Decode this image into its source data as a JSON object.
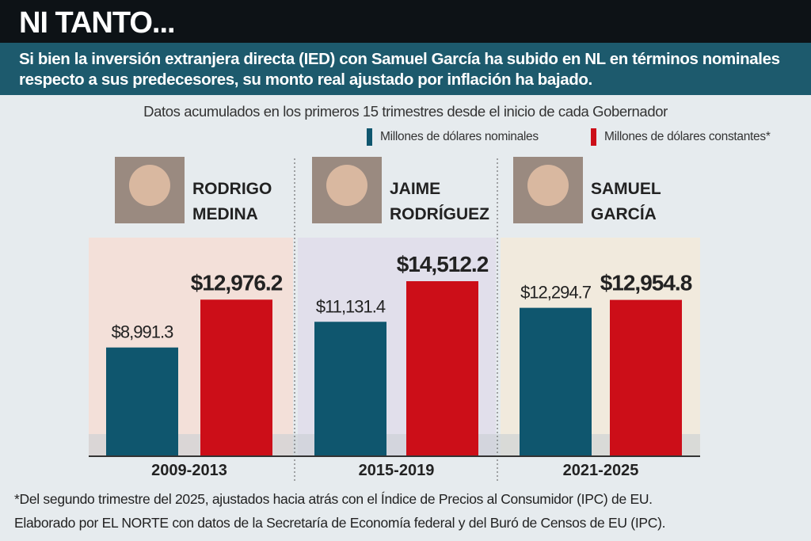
{
  "header": {
    "title": "NI TANTO...",
    "subtitle": "Si bien la inversión extranjera directa (IED) con Samuel García ha subido en NL en términos nominales respecto a sus predecesores, su monto real ajustado por inflación ha bajado."
  },
  "chart_data": {
    "type": "bar",
    "title": "Datos acumulados en los primeros 15 trimestres desde el inicio de cada Gobernador",
    "categories": [
      "2009-2013",
      "2015-2019",
      "2021-2025"
    ],
    "governors": [
      {
        "first": "RODRIGO",
        "last": "MEDINA"
      },
      {
        "first": "JAIME",
        "last": "RODRÍGUEZ"
      },
      {
        "first": "SAMUEL",
        "last": "GARCÍA"
      }
    ],
    "series": [
      {
        "name": "Millones de dólares nominales",
        "color": "#0f566e",
        "values": [
          8991.3,
          11131.4,
          12294.7
        ],
        "labels": [
          "$8,991.3",
          "$11,131.4",
          "$12,294.7"
        ]
      },
      {
        "name": "Millones de dólares constantes*",
        "color": "#cc0e18",
        "values": [
          12976.2,
          14512.2,
          12954.8
        ],
        "labels": [
          "$12,976.2",
          "$14,512.2",
          "$12,954.8"
        ]
      }
    ],
    "ylim": [
      0,
      14512.2
    ],
    "legend": "top-right",
    "grid": false
  },
  "footnotes": [
    "*Del segundo trimestre del 2025, ajustados hacia atrás con el Índice de Precios al Consumidor (IPC) de EU.",
    "Elaborado por EL NORTE con datos de la Secretaría de Economía federal y del Buró de Censos de EU (IPC)."
  ]
}
